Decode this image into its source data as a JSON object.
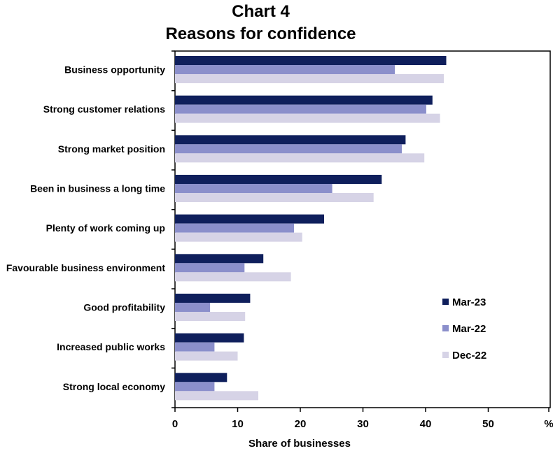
{
  "chart_data": {
    "type": "bar",
    "orientation": "horizontal",
    "title_line1": "Chart 4",
    "title_line2": "Reasons for confidence",
    "xlabel": "Share of businesses",
    "x_unit": "%",
    "xlim": [
      0,
      60
    ],
    "x_ticks": [
      "0",
      "10",
      "20",
      "30",
      "40",
      "50"
    ],
    "grid": false,
    "legend_position": "right",
    "categories": [
      "Business opportunity",
      "Strong customer relations",
      "Strong market position",
      "Been in business a long time",
      "Plenty of work coming up",
      "Favourable business environment",
      "Good profitability",
      "Increased public works",
      "Strong local economy"
    ],
    "series": [
      {
        "name": "Mar-23",
        "color": "#0f1f5c",
        "values": [
          43.3,
          41.1,
          36.8,
          33.0,
          23.8,
          14.1,
          12.0,
          11.0,
          8.3
        ]
      },
      {
        "name": "Mar-22",
        "color": "#8b8fcb",
        "values": [
          35.1,
          40.1,
          36.2,
          25.1,
          19.0,
          11.1,
          5.6,
          6.3,
          6.3
        ]
      },
      {
        "name": "Dec-22",
        "color": "#d6d3e6",
        "values": [
          42.9,
          42.3,
          39.8,
          31.7,
          20.3,
          18.5,
          11.2,
          10.0,
          13.3
        ]
      }
    ]
  }
}
